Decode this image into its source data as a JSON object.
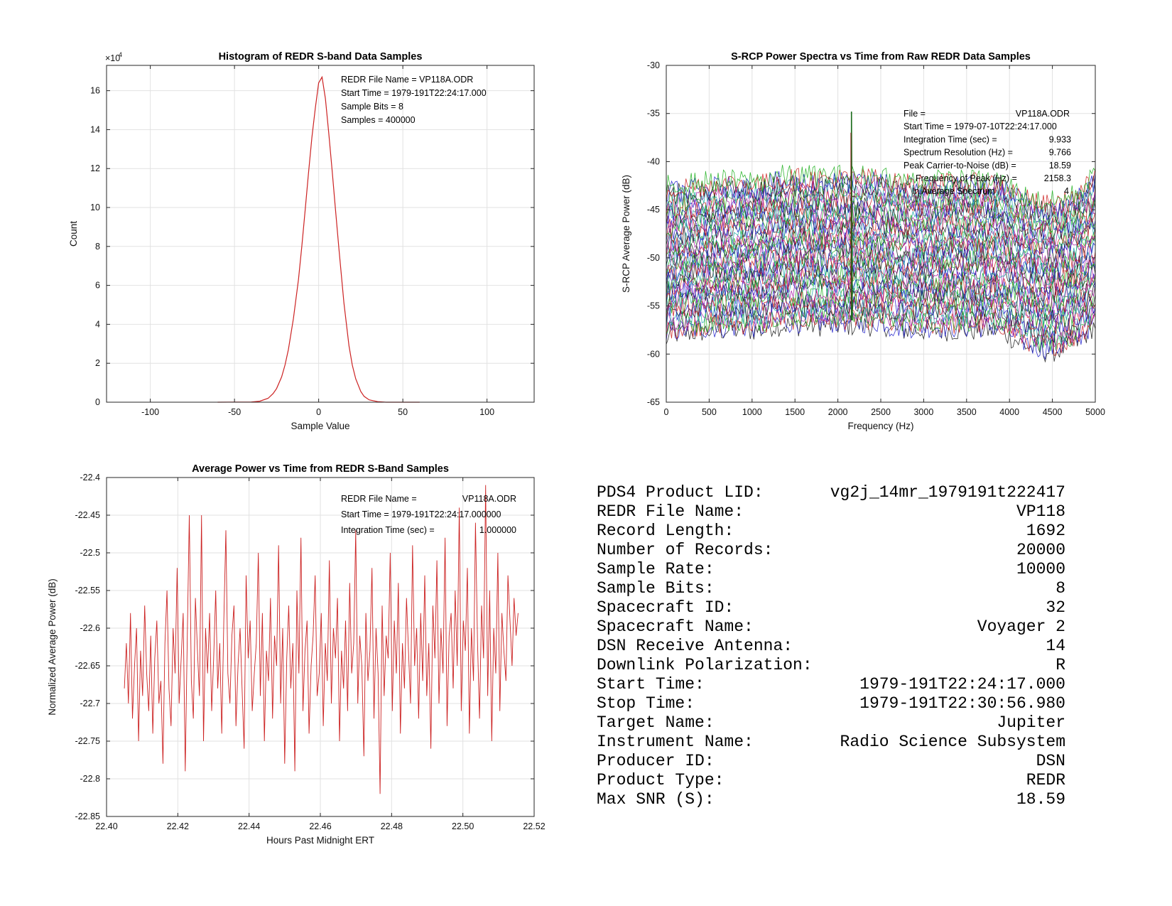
{
  "chart_data": [
    {
      "type": "line",
      "title": "Histogram of REDR S-band Data Samples",
      "xlabel": "Sample Value",
      "ylabel": "Count",
      "exponent_label": "×10",
      "exponent_power": "4",
      "xlim": [
        -126,
        128
      ],
      "ylim": [
        0,
        17.3
      ],
      "xticks": [
        -100,
        -50,
        0,
        50,
        100
      ],
      "yticks": [
        0,
        2,
        4,
        6,
        8,
        10,
        12,
        14,
        16
      ],
      "grid": true,
      "color": "#cc2222",
      "annotations": [
        "REDR File Name = VP118A.ODR",
        "Start Time = 1979-191T22:24:17.000",
        "Sample Bits = 8",
        "Samples = 400000"
      ],
      "series": [
        {
          "x": [
            -60,
            -40,
            -35,
            -30,
            -27,
            -25,
            -22,
            -20,
            -18,
            -15,
            -12,
            -10,
            -8,
            -6,
            -4,
            -2,
            0,
            2,
            4,
            6,
            8,
            10,
            12,
            15,
            18,
            20,
            22,
            25,
            27,
            30,
            35,
            40,
            60
          ],
          "values": [
            0,
            0.01,
            0.05,
            0.2,
            0.45,
            0.7,
            1.3,
            1.9,
            2.7,
            4.3,
            6.3,
            8.0,
            9.9,
            11.8,
            13.6,
            15.1,
            16.4,
            16.7,
            15.6,
            13.8,
            11.9,
            9.9,
            7.9,
            5.1,
            2.9,
            1.9,
            1.2,
            0.55,
            0.3,
            0.12,
            0.03,
            0.0,
            0
          ]
        }
      ]
    },
    {
      "type": "line",
      "title": "S-RCP Power Spectra vs Time from Raw REDR Data Samples",
      "xlabel": "Frequency (Hz)",
      "ylabel": "S-RCP Average Power (dB)",
      "xlim": [
        0,
        5000
      ],
      "ylim": [
        -65,
        -30
      ],
      "xticks": [
        0,
        500,
        1000,
        1500,
        2000,
        2500,
        3000,
        3500,
        4000,
        4500,
        5000
      ],
      "yticks": [
        -65,
        -60,
        -55,
        -50,
        -45,
        -40,
        -35,
        -30
      ],
      "grid": true,
      "series_colors": [
        "#1a1a1a",
        "#2020cc",
        "#cc2020",
        "#20b020",
        "#aa20aa",
        "#20aaaa"
      ],
      "trace_count": 46,
      "trace_offset_range_db": [
        -57.5,
        -42
      ],
      "peak": {
        "frequency_hz": 2158.3,
        "power_db": -34.8
      },
      "annotation_rows": [
        {
          "label": "File =",
          "value": "VP118A.ODR"
        },
        {
          "label": "Start Time = 1979-07-10T22:24:17.000",
          "value": ""
        },
        {
          "label": "Integration Time (sec) =",
          "value": "9.933"
        },
        {
          "label": "Spectrum Resolution (Hz) =",
          "value": "9.766"
        },
        {
          "label": "Peak Carrier-to-Noise (dB) =",
          "value": "18.59"
        },
        {
          "label": "Frequency of Peak (Hz) =",
          "value": "2158.3"
        },
        {
          "label": "In Average Spectrum",
          "value": "4"
        }
      ]
    },
    {
      "type": "line",
      "title": "Average Power vs Time from REDR S-Band Samples",
      "xlabel": "Hours Past Midnight ERT",
      "ylabel": "Normalized Average Power (dB)",
      "xlim": [
        22.4,
        22.52
      ],
      "ylim": [
        -22.85,
        -22.4
      ],
      "xticks": [
        22.4,
        22.42,
        22.44,
        22.46,
        22.48,
        22.5,
        22.52
      ],
      "yticks": [
        -22.85,
        -22.8,
        -22.75,
        -22.7,
        -22.65,
        -22.6,
        -22.55,
        -22.5,
        -22.45,
        -22.4
      ],
      "grid": true,
      "color": "#cc2222",
      "x_range_data": [
        22.405,
        22.5155
      ],
      "annotation_rows": [
        {
          "label": "REDR File Name =",
          "value": "VP118A.ODR"
        },
        {
          "label": "Start Time = 1979-191T22:24:17.000000",
          "value": ""
        },
        {
          "label": "Integration Time (sec) =",
          "value": "1.000000"
        }
      ],
      "series": [
        {
          "name": "",
          "values": [
            -22.68,
            -22.62,
            -22.7,
            -22.58,
            -22.72,
            -22.65,
            -22.6,
            -22.75,
            -22.63,
            -22.69,
            -22.57,
            -22.66,
            -22.71,
            -22.61,
            -22.74,
            -22.64,
            -22.59,
            -22.7,
            -22.67,
            -22.78,
            -22.62,
            -22.55,
            -22.68,
            -22.73,
            -22.6,
            -22.66,
            -22.52,
            -22.7,
            -22.64,
            -22.58,
            -22.79,
            -22.61,
            -22.45,
            -22.67,
            -22.72,
            -22.56,
            -22.63,
            -22.69,
            -22.45,
            -22.75,
            -22.6,
            -22.66,
            -22.58,
            -22.71,
            -22.64,
            -22.55,
            -22.68,
            -22.62,
            -22.74,
            -22.59,
            -22.47,
            -22.66,
            -22.7,
            -22.61,
            -22.57,
            -22.73,
            -22.65,
            -22.6,
            -22.68,
            -22.76,
            -22.53,
            -22.64,
            -22.59,
            -22.71,
            -22.66,
            -22.62,
            -22.5,
            -22.69,
            -22.58,
            -22.75,
            -22.63,
            -22.67,
            -22.56,
            -22.72,
            -22.61,
            -22.65,
            -22.49,
            -22.7,
            -22.6,
            -22.78,
            -22.64,
            -22.57,
            -22.68,
            -22.62,
            -22.79,
            -22.55,
            -22.66,
            -22.48,
            -22.71,
            -22.63,
            -22.59,
            -22.74,
            -22.65,
            -22.61,
            -22.53,
            -22.69,
            -22.66,
            -22.58,
            -22.73,
            -22.62,
            -22.67,
            -22.51,
            -22.7,
            -22.6,
            -22.64,
            -22.56,
            -22.75,
            -22.63,
            -22.68,
            -22.59,
            -22.71,
            -22.54,
            -22.66,
            -22.62,
            -22.47,
            -22.7,
            -22.61,
            -22.65,
            -22.77,
            -22.58,
            -22.67,
            -22.63,
            -22.52,
            -22.72,
            -22.6,
            -22.66,
            -22.82,
            -22.57,
            -22.69,
            -22.61,
            -22.64,
            -22.5,
            -22.71,
            -22.59,
            -22.66,
            -22.54,
            -22.74,
            -22.62,
            -22.68,
            -22.56,
            -22.63,
            -22.7,
            -22.49,
            -22.65,
            -22.6,
            -22.72,
            -22.58,
            -22.67,
            -22.53,
            -22.69,
            -22.62,
            -22.76,
            -22.57,
            -22.64,
            -22.51,
            -22.7,
            -22.6,
            -22.66,
            -22.48,
            -22.73,
            -22.61,
            -22.58,
            -22.68,
            -22.55,
            -22.65,
            -22.44,
            -22.71,
            -22.59,
            -22.63,
            -22.52,
            -22.74,
            -22.6,
            -22.67,
            -22.46,
            -22.62,
            -22.72,
            -22.57,
            -22.64,
            -22.41,
            -22.69,
            -22.55,
            -22.75,
            -22.6,
            -22.66,
            -22.5,
            -22.71,
            -22.58,
            -22.63,
            -22.67,
            -22.53,
            -22.59,
            -22.65,
            -22.56,
            -22.61,
            -22.58
          ]
        }
      ]
    }
  ],
  "summary": {
    "rows": [
      {
        "label": "PDS4 Product LID:",
        "value": "vg2j_14mr_1979191t222417"
      },
      {
        "label": "REDR File Name:",
        "value": "VP118"
      },
      {
        "label": "Record Length:",
        "value": "1692"
      },
      {
        "label": "Number of Records:",
        "value": "20000"
      },
      {
        "label": "Sample Rate:",
        "value": "10000"
      },
      {
        "label": "Sample Bits:",
        "value": "8"
      },
      {
        "label": "Spacecraft ID:",
        "value": "32"
      },
      {
        "label": "Spacecraft Name:",
        "value": "Voyager 2"
      },
      {
        "label": "DSN Receive Antenna:",
        "value": "14"
      },
      {
        "label": "Downlink Polarization:",
        "value": "R"
      },
      {
        "label": "Start Time:",
        "value": "1979-191T22:24:17.000"
      },
      {
        "label": "Stop Time:",
        "value": "1979-191T22:30:56.980"
      },
      {
        "label": "Target Name:",
        "value": "Jupiter"
      },
      {
        "label": "Instrument Name:",
        "value": "Radio Science Subsystem"
      },
      {
        "label": "Producer ID:",
        "value": "DSN"
      },
      {
        "label": "Product Type:",
        "value": "REDR"
      },
      {
        "label": "Max SNR (S):",
        "value": "18.59"
      }
    ]
  }
}
